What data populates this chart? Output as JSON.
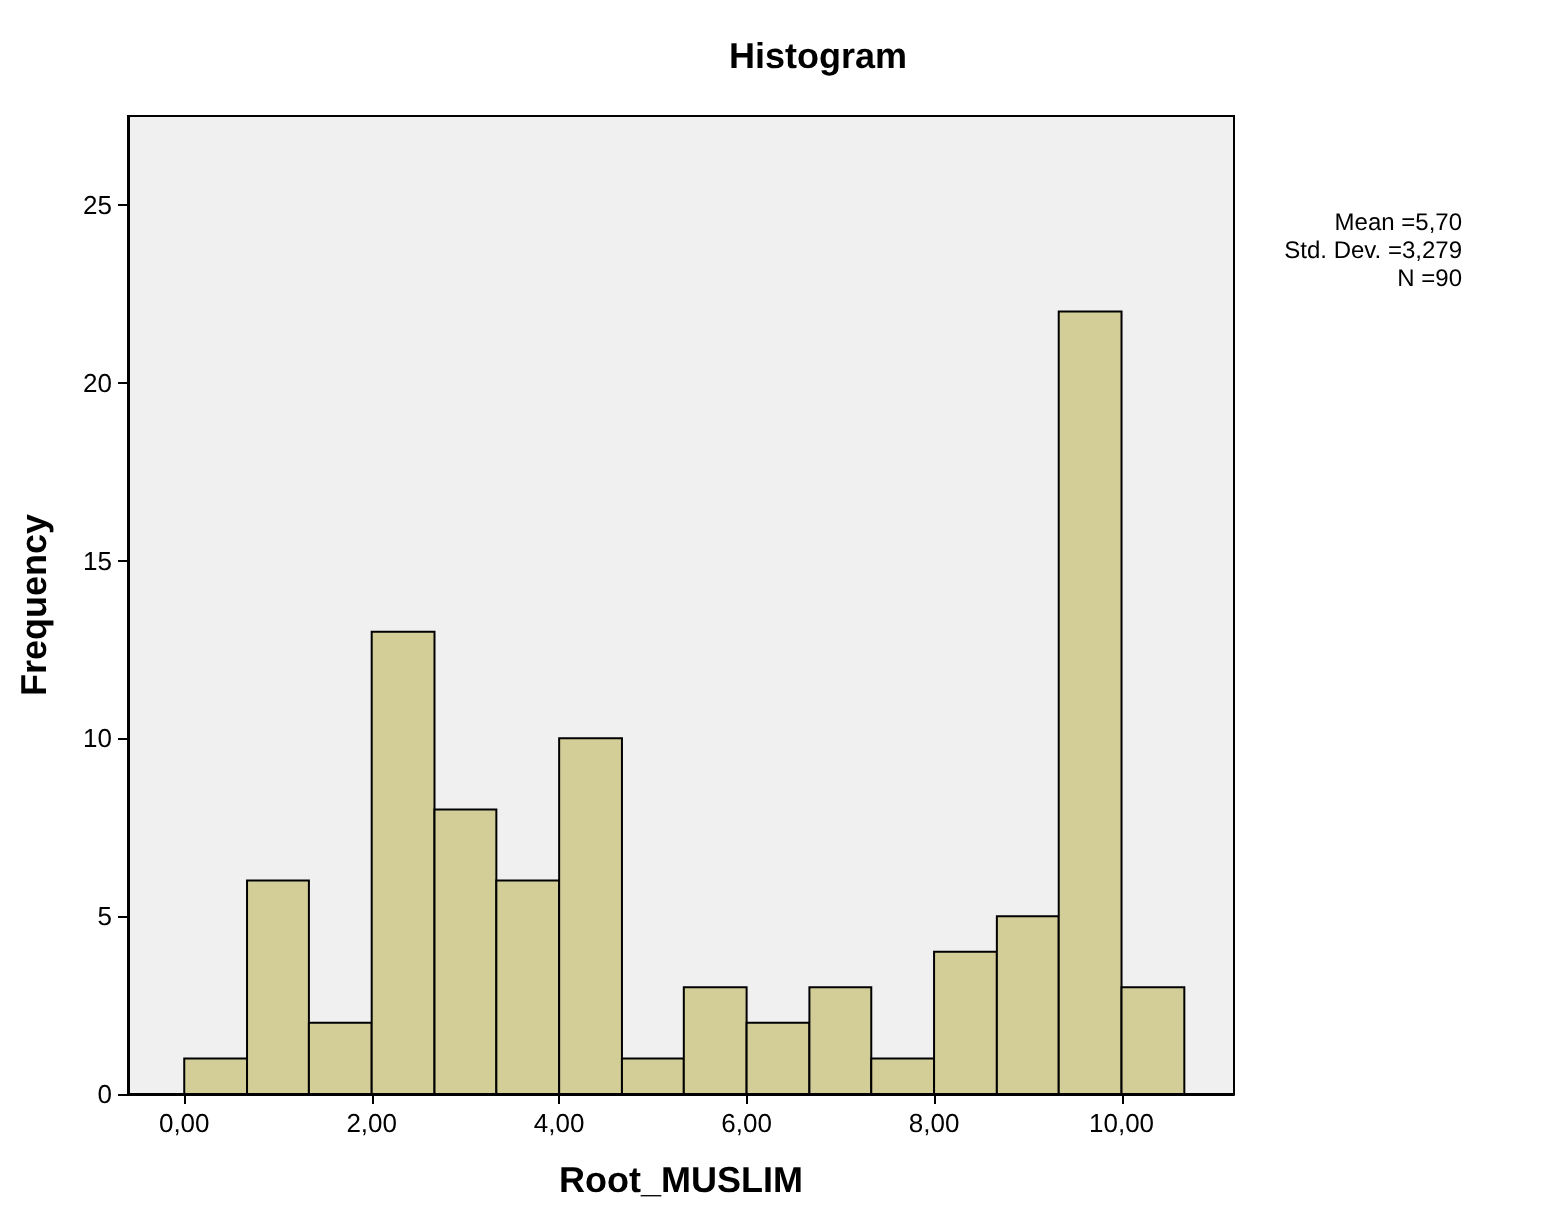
{
  "chart_data": {
    "type": "histogram",
    "title": "Histogram",
    "xlabel": "Root_MUSLIM",
    "ylabel": "Frequency",
    "bins": [
      0,
      0.67,
      1.33,
      2,
      2.67,
      3.33,
      4,
      4.67,
      5.33,
      6,
      6.67,
      7.33,
      8,
      8.67,
      9.33,
      10,
      10.67
    ],
    "values": [
      1,
      6,
      2,
      13,
      8,
      6,
      10,
      1,
      3,
      2,
      3,
      1,
      4,
      5,
      22,
      3
    ],
    "color": "#d3ce98",
    "xlim": [
      -0.6,
      11.2
    ],
    "xticks": [
      {
        "value": 0,
        "label": "0,00"
      },
      {
        "value": 2,
        "label": "2,00"
      },
      {
        "value": 4,
        "label": "4,00"
      },
      {
        "value": 6,
        "label": "6,00"
      },
      {
        "value": 8,
        "label": "8,00"
      },
      {
        "value": 10,
        "label": "10,00"
      }
    ],
    "ylim": [
      0,
      27.5
    ],
    "yticks": [
      0,
      5,
      10,
      15,
      20,
      25
    ],
    "grid": false,
    "annotations": [
      "Mean =5,70",
      "Std. Dev. =3,279",
      "N =90"
    ]
  }
}
